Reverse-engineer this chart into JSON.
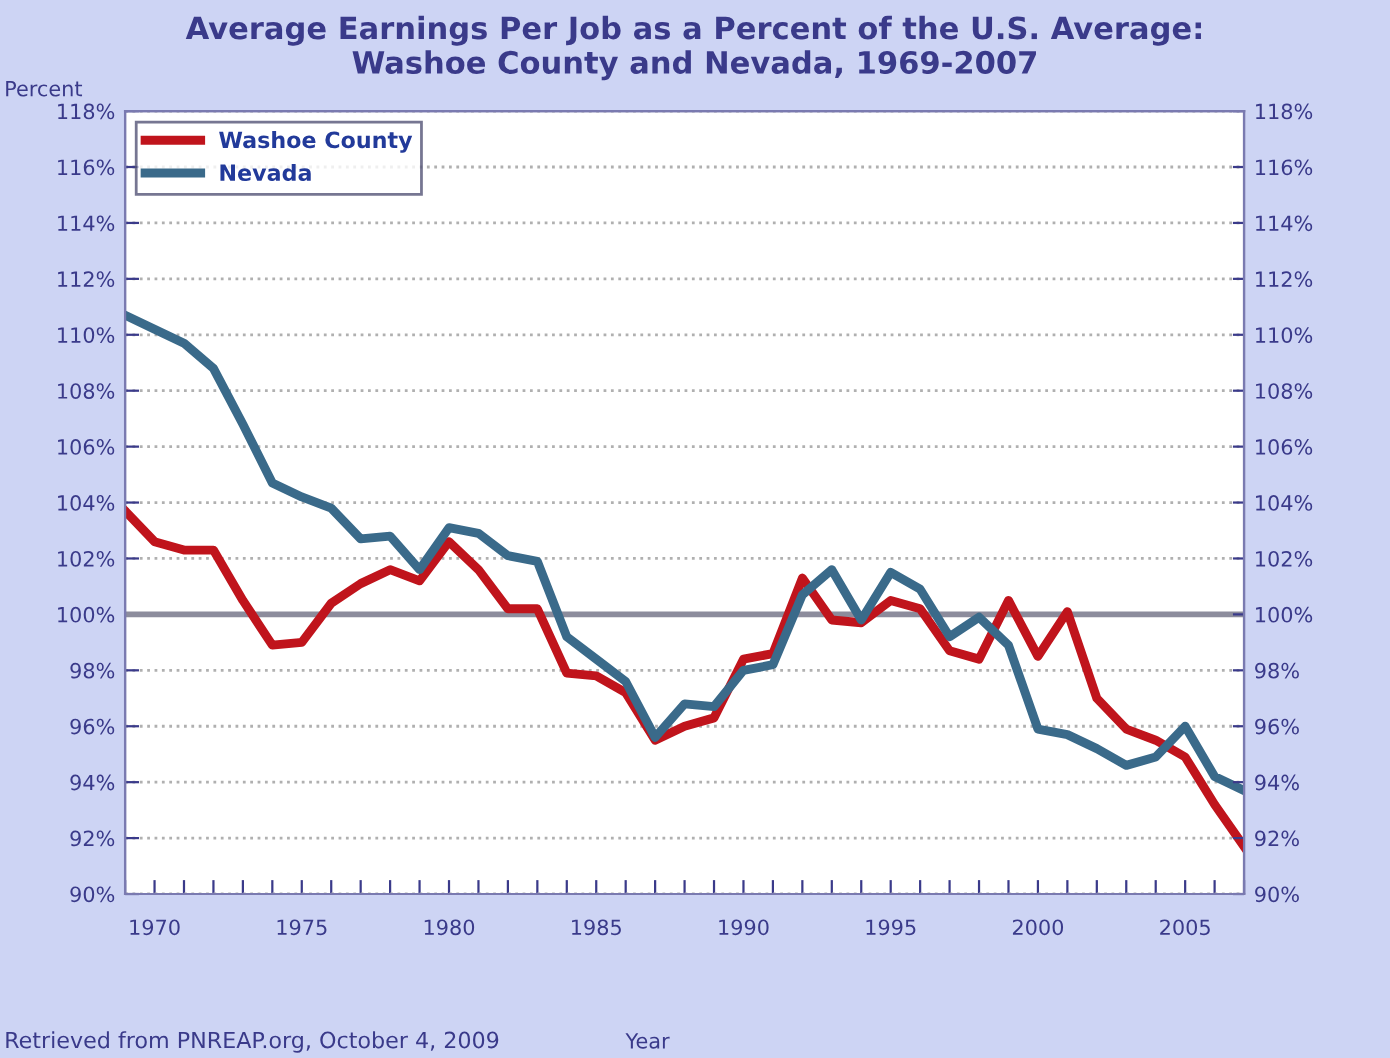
{
  "chart_data": {
    "type": "line",
    "title": "Average Earnings Per Job as a Percent of the U.S. Average:\nWashoe County and Nevada, 1969-2007",
    "ylabel": "Percent",
    "xlabel": "Year",
    "annotations": [
      "Retrieved from PNREAP.org, October 4, 2009"
    ],
    "x": [
      1969,
      1970,
      1971,
      1972,
      1973,
      1974,
      1975,
      1976,
      1977,
      1978,
      1979,
      1980,
      1981,
      1982,
      1983,
      1984,
      1985,
      1986,
      1987,
      1988,
      1989,
      1990,
      1991,
      1992,
      1993,
      1994,
      1995,
      1996,
      1997,
      1998,
      1999,
      2000,
      2001,
      2002,
      2003,
      2004,
      2005,
      2006,
      2007
    ],
    "series": [
      {
        "name": "Washoe County",
        "color": "#c0141c",
        "values": [
          103.7,
          102.6,
          102.3,
          102.3,
          100.5,
          98.9,
          99.0,
          100.4,
          101.1,
          101.6,
          101.2,
          102.6,
          101.6,
          100.2,
          100.2,
          97.9,
          97.8,
          97.2,
          95.5,
          96.0,
          96.3,
          98.4,
          98.6,
          101.3,
          99.8,
          99.7,
          100.5,
          100.2,
          98.7,
          98.4,
          100.5,
          98.5,
          100.1,
          97.0,
          95.9,
          95.5,
          94.9,
          93.2,
          91.7
        ]
      },
      {
        "name": "Nevada",
        "color": "#3a6a8a",
        "values": [
          110.7,
          110.2,
          109.7,
          108.8,
          106.8,
          104.7,
          104.2,
          103.8,
          102.7,
          102.8,
          101.6,
          103.1,
          102.9,
          102.1,
          101.9,
          99.2,
          98.4,
          97.6,
          95.6,
          96.8,
          96.7,
          98.0,
          98.2,
          100.7,
          101.6,
          99.8,
          101.5,
          100.9,
          99.2,
          99.9,
          98.9,
          95.9,
          95.7,
          95.2,
          94.6,
          94.9,
          96.0,
          94.2,
          93.7
        ]
      }
    ],
    "xlim": [
      1969,
      2007
    ],
    "xticks": [
      {
        "value": 1969,
        "label": null
      },
      {
        "value": 1970,
        "label": "1970"
      },
      {
        "value": 1971,
        "label": null
      },
      {
        "value": 1972,
        "label": null
      },
      {
        "value": 1973,
        "label": null
      },
      {
        "value": 1974,
        "label": null
      },
      {
        "value": 1975,
        "label": "1975"
      },
      {
        "value": 1976,
        "label": null
      },
      {
        "value": 1977,
        "label": null
      },
      {
        "value": 1978,
        "label": null
      },
      {
        "value": 1979,
        "label": null
      },
      {
        "value": 1980,
        "label": "1980"
      },
      {
        "value": 1981,
        "label": null
      },
      {
        "value": 1982,
        "label": null
      },
      {
        "value": 1983,
        "label": null
      },
      {
        "value": 1984,
        "label": null
      },
      {
        "value": 1985,
        "label": "1985"
      },
      {
        "value": 1986,
        "label": null
      },
      {
        "value": 1987,
        "label": null
      },
      {
        "value": 1988,
        "label": null
      },
      {
        "value": 1989,
        "label": null
      },
      {
        "value": 1990,
        "label": "1990"
      },
      {
        "value": 1991,
        "label": null
      },
      {
        "value": 1992,
        "label": null
      },
      {
        "value": 1993,
        "label": null
      },
      {
        "value": 1994,
        "label": null
      },
      {
        "value": 1995,
        "label": "1995"
      },
      {
        "value": 1996,
        "label": null
      },
      {
        "value": 1997,
        "label": null
      },
      {
        "value": 1998,
        "label": null
      },
      {
        "value": 1999,
        "label": null
      },
      {
        "value": 2000,
        "label": "2000"
      },
      {
        "value": 2001,
        "label": null
      },
      {
        "value": 2002,
        "label": null
      },
      {
        "value": 2003,
        "label": null
      },
      {
        "value": 2004,
        "label": null
      },
      {
        "value": 2005,
        "label": "2005"
      },
      {
        "value": 2006,
        "label": null
      },
      {
        "value": 2007,
        "label": null
      }
    ],
    "ylim": [
      90,
      118
    ],
    "yticks": [
      {
        "value": 90,
        "label": "90%"
      },
      {
        "value": 92,
        "label": "92%"
      },
      {
        "value": 94,
        "label": "94%"
      },
      {
        "value": 96,
        "label": "96%"
      },
      {
        "value": 98,
        "label": "98%"
      },
      {
        "value": 100,
        "label": "100%"
      },
      {
        "value": 102,
        "label": "102%"
      },
      {
        "value": 104,
        "label": "104%"
      },
      {
        "value": 106,
        "label": "106%"
      },
      {
        "value": 108,
        "label": "108%"
      },
      {
        "value": 110,
        "label": "110%"
      },
      {
        "value": 112,
        "label": "112%"
      },
      {
        "value": 114,
        "label": "114%"
      },
      {
        "value": 116,
        "label": "116%"
      },
      {
        "value": 118,
        "label": "118%"
      }
    ],
    "y2lim": [
      90,
      118
    ],
    "y2ticks": [
      {
        "value": 90,
        "label": "90%"
      },
      {
        "value": 92,
        "label": "92%"
      },
      {
        "value": 94,
        "label": "94%"
      },
      {
        "value": 96,
        "label": "96%"
      },
      {
        "value": 98,
        "label": "98%"
      },
      {
        "value": 100,
        "label": "100%"
      },
      {
        "value": 102,
        "label": "102%"
      },
      {
        "value": 104,
        "label": "104%"
      },
      {
        "value": 106,
        "label": "106%"
      },
      {
        "value": 108,
        "label": "108%"
      },
      {
        "value": 110,
        "label": "110%"
      },
      {
        "value": 112,
        "label": "112%"
      },
      {
        "value": 114,
        "label": "114%"
      },
      {
        "value": 116,
        "label": "116%"
      },
      {
        "value": 118,
        "label": "118%"
      }
    ],
    "ref_lines": [
      {
        "axis": "y",
        "value": 100,
        "color": "#8c8c9c",
        "line_style": "solid"
      }
    ],
    "grid": "y",
    "legend": "top left",
    "marker": "none",
    "line_style": "solid"
  }
}
